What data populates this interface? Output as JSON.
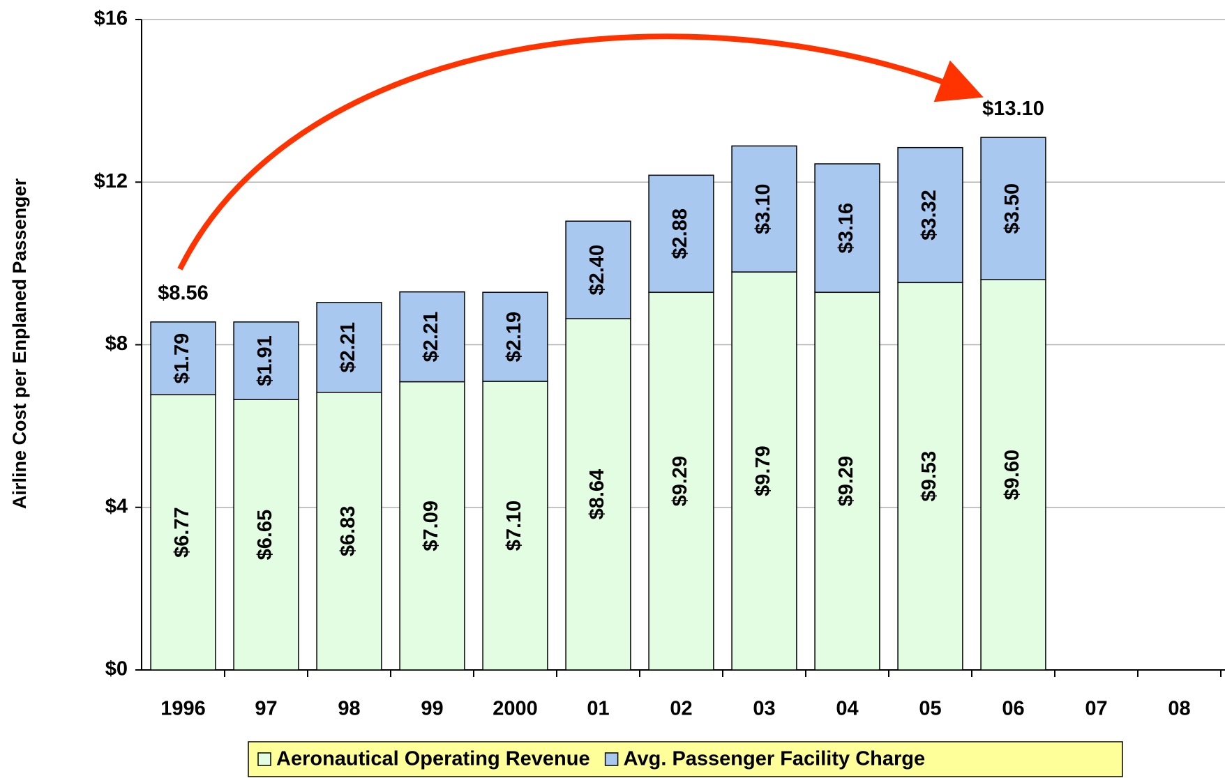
{
  "chart_data": {
    "type": "stacked_bar",
    "y_label": "Airline Cost per Enplaned Passenger",
    "categories": [
      "1996",
      "97",
      "98",
      "99",
      "2000",
      "01",
      "02",
      "03",
      "04",
      "05",
      "06",
      "07",
      "08"
    ],
    "series": [
      {
        "name": "Aeronautical Operating Revenue",
        "color": "#e2fde2",
        "values": [
          6.77,
          6.65,
          6.83,
          7.09,
          7.1,
          8.64,
          9.29,
          9.79,
          9.29,
          9.53,
          9.6,
          null,
          null
        ],
        "value_labels": [
          "$6.77",
          "$6.65",
          "$6.83",
          "$7.09",
          "$7.10",
          "$8.64",
          "$9.29",
          "$9.79",
          "$9.29",
          "$9.53",
          "$9.60",
          null,
          null
        ]
      },
      {
        "name": "Avg. Passenger Facility Charge",
        "color": "#a8c8f0",
        "values": [
          1.79,
          1.91,
          2.21,
          2.21,
          2.19,
          2.4,
          2.88,
          3.1,
          3.16,
          3.32,
          3.5,
          null,
          null
        ],
        "value_labels": [
          "$1.79",
          "$1.91",
          "$2.21",
          "$2.21",
          "$2.19",
          "$2.40",
          "$2.88",
          "$3.10",
          "$3.16",
          "$3.32",
          "$3.50",
          null,
          null
        ]
      }
    ],
    "annotations": [
      "$8.56",
      "$13.10"
    ],
    "ylim": [
      0,
      16
    ],
    "yticks": [
      {
        "value": 0,
        "label": "$0"
      },
      {
        "value": 4,
        "label": "$4"
      },
      {
        "value": 8,
        "label": "$8"
      },
      {
        "value": 12,
        "label": "$12"
      },
      {
        "value": 16,
        "label": "$16"
      }
    ],
    "grid": true,
    "legend": "bottom",
    "legend_background": "#ffff99"
  }
}
